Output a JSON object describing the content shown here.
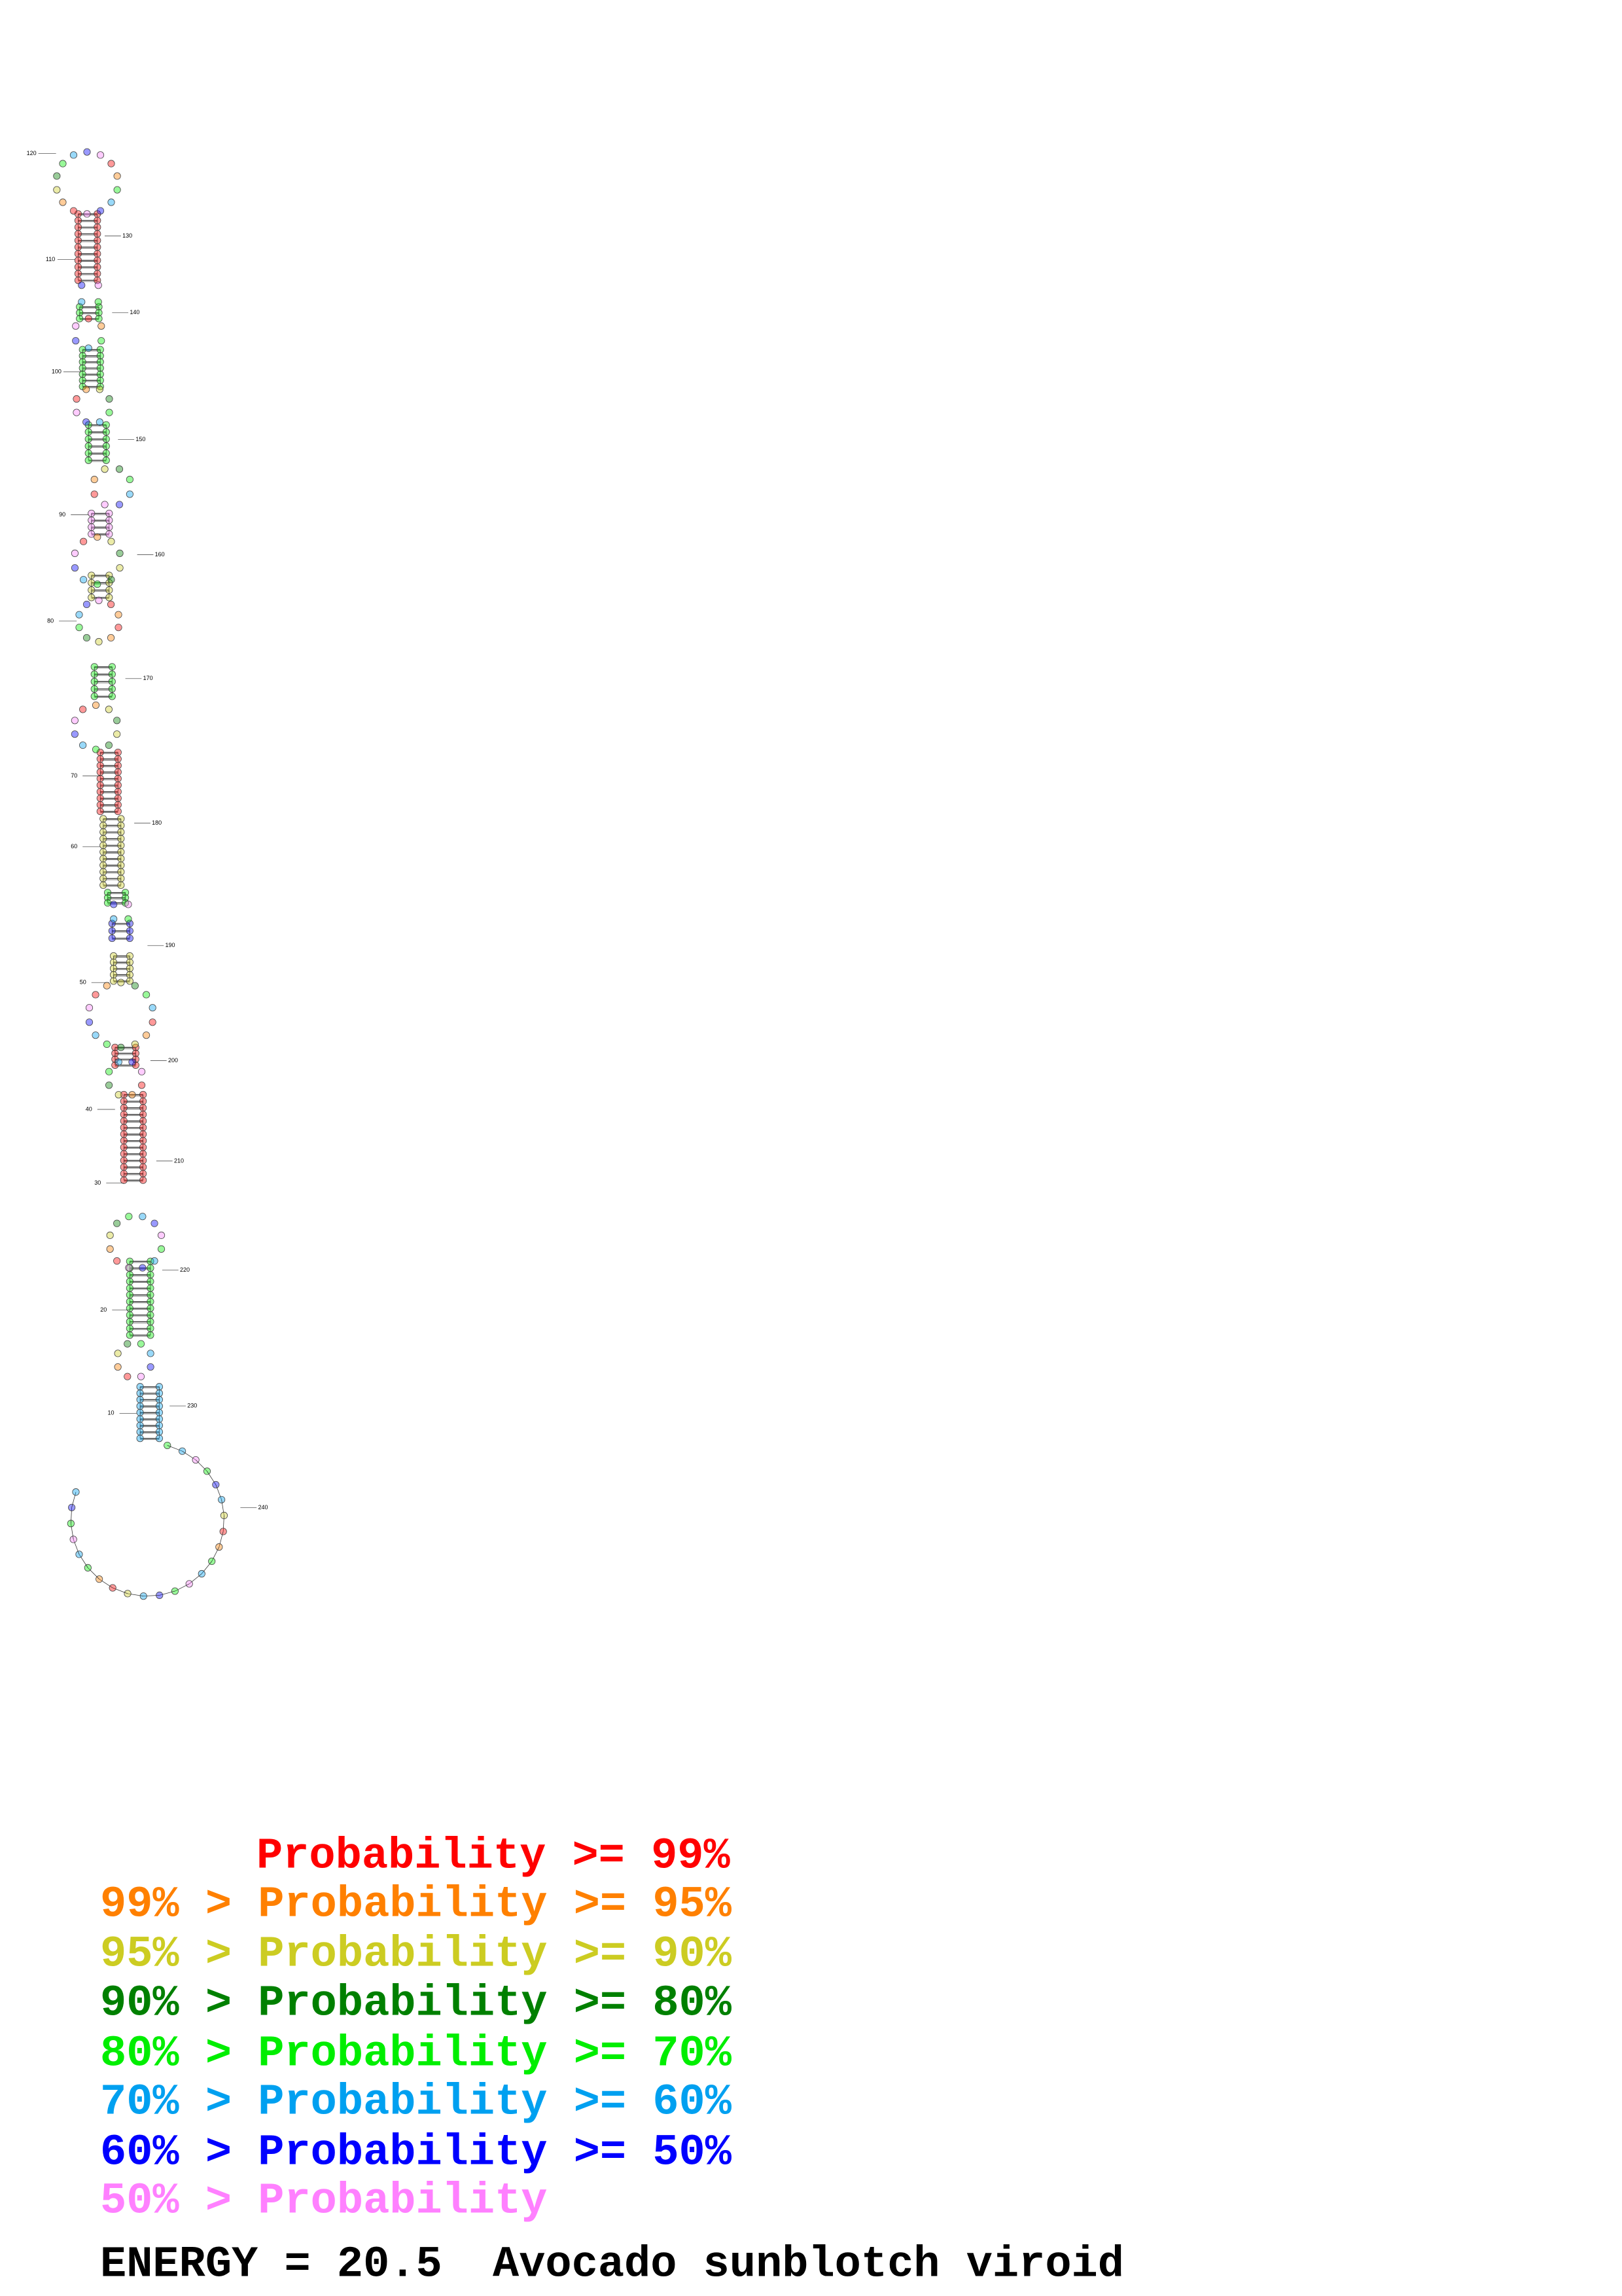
{
  "legend": [
    {
      "text": "Probability >= 99%",
      "color": "#ff0000"
    },
    {
      "text": "99% > Probability >= 95%",
      "color": "#ff8000"
    },
    {
      "text": "95% > Probability >= 90%",
      "color": "#cccc22"
    },
    {
      "text": "90% > Probability >= 80%",
      "color": "#008000"
    },
    {
      "text": "80% > Probability >= 70%",
      "color": "#00ee00"
    },
    {
      "text": "70% > Probability >= 60%",
      "color": "#00a0f0"
    },
    {
      "text": "60% > Probability >= 50%",
      "color": "#0000ff"
    },
    {
      "text": "50% > Probability",
      "color": "#ff80ff"
    }
  ],
  "energy": "ENERGY = 20.5",
  "name": "Avocado sunblotch viroid",
  "position_labels": [
    "10",
    "20",
    "30",
    "40",
    "50",
    "60",
    "70",
    "80",
    "90",
    "100",
    "110",
    "120",
    "130",
    "140",
    "150",
    "160",
    "170",
    "180",
    "190",
    "200",
    "210",
    "220",
    "230",
    "240"
  ]
}
